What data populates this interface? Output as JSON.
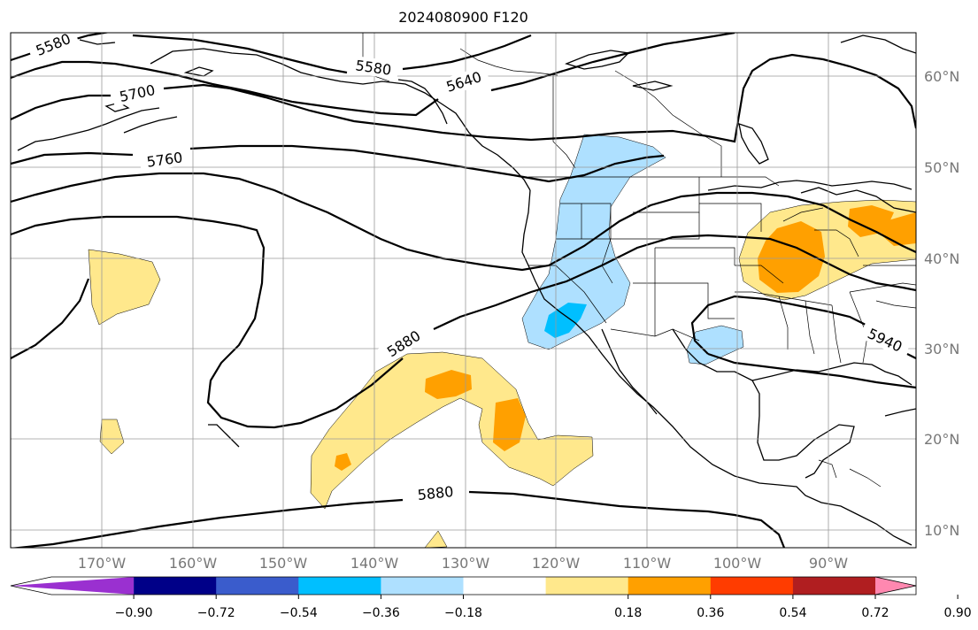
{
  "title": "2024080900 F120",
  "latitude_labels": [
    "60°N",
    "50°N",
    "40°N",
    "30°N",
    "20°N",
    "10°N"
  ],
  "longitude_labels": [
    "170°W",
    "160°W",
    "150°W",
    "140°W",
    "130°W",
    "120°W",
    "110°W",
    "100°W",
    "90°W"
  ],
  "contour_labels": [
    "5580",
    "5580",
    "5640",
    "5700",
    "5760",
    "5880",
    "5880",
    "5940"
  ],
  "colorbar": {
    "colors": [
      "#9a30d0",
      "#000088",
      "#3a5ccc",
      "#00bfff",
      "#aee0ff",
      "#ffffff",
      "#ffe88c",
      "#ffa000",
      "#ff3c00",
      "#b01e20",
      "#ff88b0"
    ],
    "tick_labels": [
      "−0.90",
      "−0.72",
      "−0.54",
      "−0.36",
      "−0.18",
      "0.18",
      "0.36",
      "0.54",
      "0.72",
      "0.90"
    ]
  }
}
